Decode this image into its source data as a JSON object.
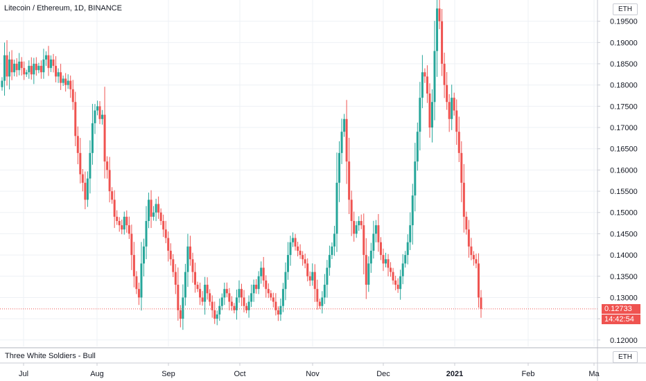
{
  "header": {
    "title": "Litecoin / Ethereum, 1D, BINANCE"
  },
  "badges": {
    "currency_top": "ETH",
    "currency_bottom": "ETH"
  },
  "indicator": {
    "name": "Three White Soldiers - Bull"
  },
  "price_labels": {
    "last": "0.12733",
    "countdown": "14:42:54"
  },
  "colors": {
    "up": "#26a69a",
    "down": "#ef5350",
    "grid": "#eef1f5",
    "text": "#131722",
    "axis_line": "#c8cbd3"
  },
  "chart_data": {
    "type": "candlestick",
    "title": "Litecoin / Ethereum, 1D, BINANCE",
    "xlabel": "",
    "ylabel": "",
    "ylim": [
      0.1185,
      0.2
    ],
    "y_ticks": [
      "0.12000",
      "0.12500",
      "0.13000",
      "0.13500",
      "0.14000",
      "0.14500",
      "0.15000",
      "0.15500",
      "0.16000",
      "0.16500",
      "0.17000",
      "0.17500",
      "0.18000",
      "0.18500",
      "0.19000",
      "0.19500"
    ],
    "x_ticks": [
      "Jul",
      "Aug",
      "Sep",
      "Oct",
      "Nov",
      "Dec",
      "2021",
      "Feb",
      "Ma"
    ],
    "grid": true,
    "last_price": 0.12733,
    "series": [
      {
        "values": [
          0.181,
          0.187,
          0.182,
          0.186,
          0.183,
          0.185,
          0.1835,
          0.1855,
          0.184,
          0.1825,
          0.183,
          0.1845,
          0.1825,
          0.185,
          0.1835,
          0.1845,
          0.183,
          0.186,
          0.187,
          0.184,
          0.186,
          0.1845,
          0.182,
          0.183,
          0.1805,
          0.1815,
          0.18,
          0.181,
          0.179,
          0.176,
          0.168,
          0.164,
          0.159,
          0.157,
          0.153,
          0.158,
          0.164,
          0.171,
          0.174,
          0.175,
          0.172,
          0.173,
          0.162,
          0.16,
          0.155,
          0.153,
          0.149,
          0.148,
          0.147,
          0.146,
          0.149,
          0.147,
          0.145,
          0.14,
          0.135,
          0.132,
          0.13,
          0.138,
          0.142,
          0.148,
          0.153,
          0.149,
          0.15,
          0.152,
          0.15,
          0.148,
          0.146,
          0.144,
          0.141,
          0.139,
          0.136,
          0.133,
          0.127,
          0.125,
          0.13,
          0.136,
          0.142,
          0.139,
          0.136,
          0.133,
          0.132,
          0.13,
          0.129,
          0.133,
          0.131,
          0.129,
          0.127,
          0.125,
          0.126,
          0.128,
          0.13,
          0.132,
          0.131,
          0.129,
          0.128,
          0.127,
          0.13,
          0.132,
          0.13,
          0.128,
          0.127,
          0.129,
          0.131,
          0.133,
          0.132,
          0.135,
          0.137,
          0.134,
          0.132,
          0.131,
          0.13,
          0.129,
          0.127,
          0.126,
          0.128,
          0.132,
          0.136,
          0.14,
          0.143,
          0.144,
          0.142,
          0.141,
          0.14,
          0.139,
          0.138,
          0.135,
          0.134,
          0.136,
          0.132,
          0.129,
          0.128,
          0.13,
          0.133,
          0.137,
          0.14,
          0.142,
          0.145,
          0.157,
          0.164,
          0.169,
          0.172,
          0.162,
          0.153,
          0.148,
          0.145,
          0.147,
          0.148,
          0.147,
          0.14,
          0.133,
          0.138,
          0.141,
          0.145,
          0.147,
          0.143,
          0.14,
          0.138,
          0.139,
          0.137,
          0.136,
          0.134,
          0.133,
          0.132,
          0.135,
          0.138,
          0.14,
          0.143,
          0.147,
          0.154,
          0.162,
          0.169,
          0.177,
          0.183,
          0.182,
          0.178,
          0.17,
          0.176,
          0.188,
          0.198,
          0.195,
          0.185,
          0.18,
          0.176,
          0.172,
          0.177,
          0.174,
          0.169,
          0.164,
          0.157,
          0.149,
          0.146,
          0.142,
          0.14,
          0.139,
          0.138,
          0.13,
          0.1273
        ]
      }
    ]
  }
}
